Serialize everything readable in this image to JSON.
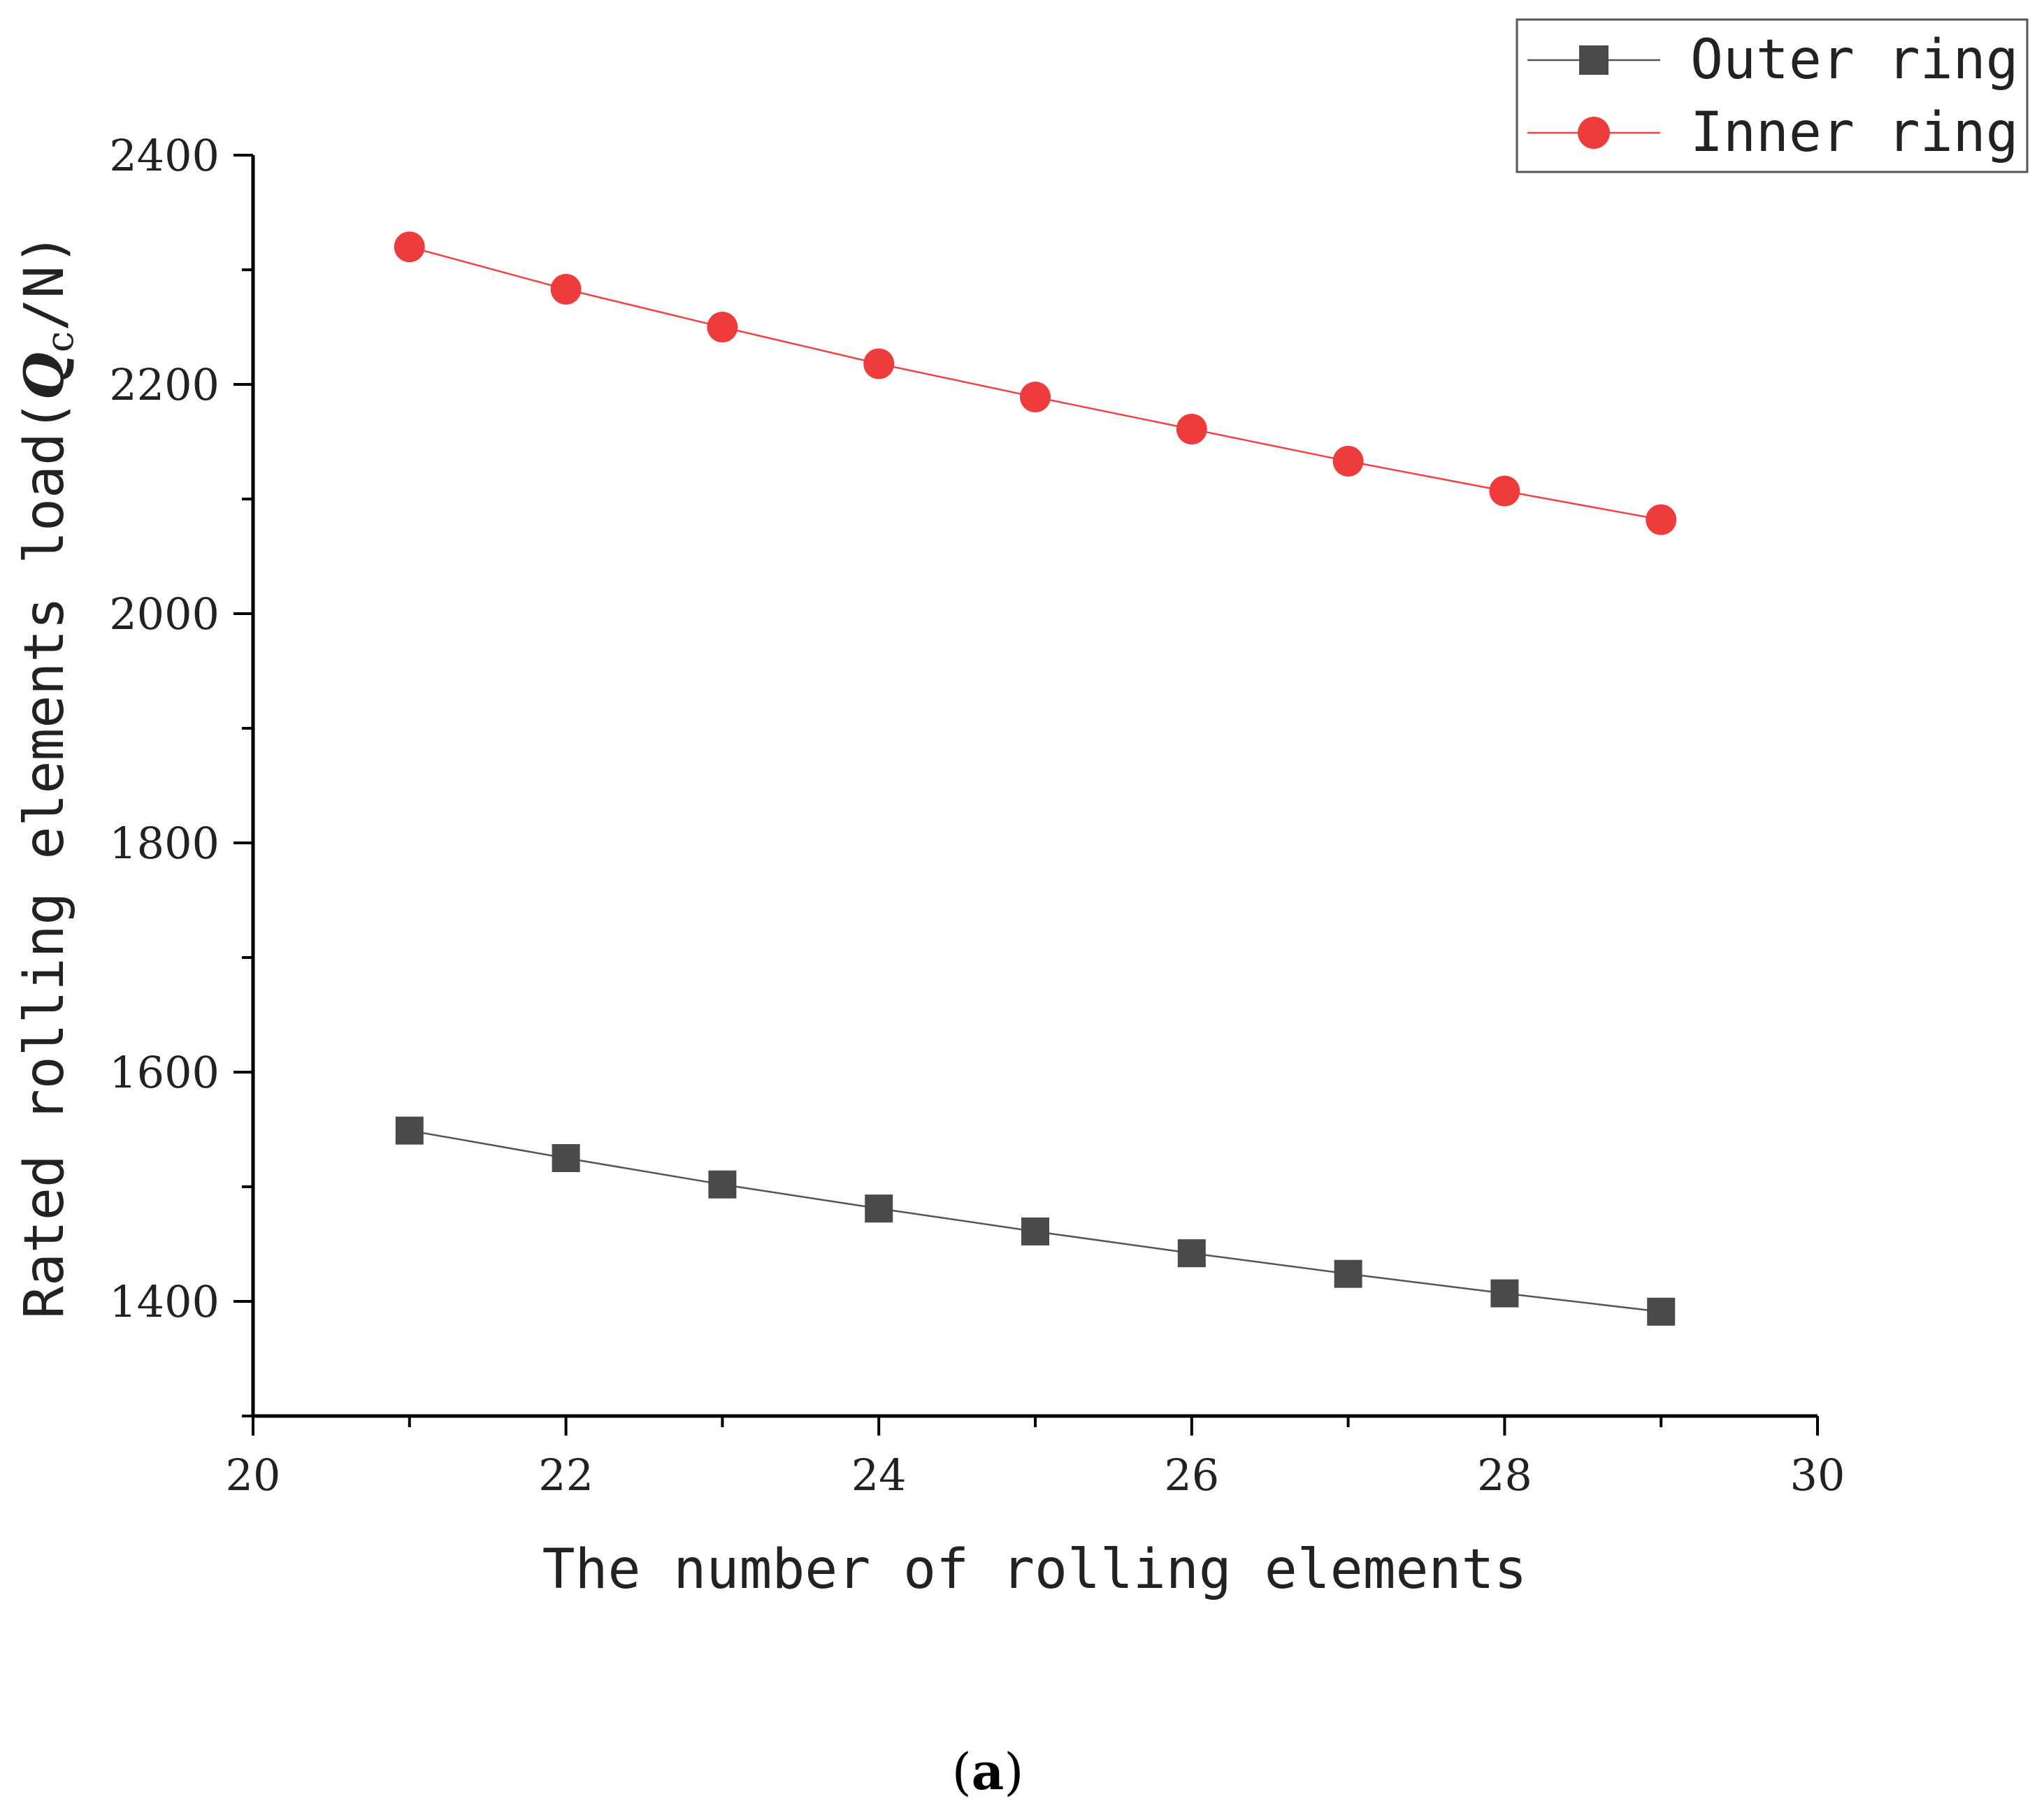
{
  "chart_data": {
    "type": "line",
    "title": "",
    "xlabel": "The number of rolling elements",
    "ylabel_prefix": "Rated rolling elements load(",
    "ylabel_symbol": "Q",
    "ylabel_subscript": "c",
    "ylabel_suffix": "/N)",
    "xlim": [
      20,
      30
    ],
    "ylim": [
      1300,
      2400
    ],
    "x_ticks": [
      20,
      22,
      24,
      26,
      28,
      30
    ],
    "y_ticks": [
      1400,
      1600,
      1800,
      2000,
      2200,
      2400
    ],
    "legend_position": "top-right",
    "x": [
      21,
      22,
      23,
      24,
      25,
      26,
      27,
      28,
      29
    ],
    "series": [
      {
        "name": "Outer ring",
        "marker": "square",
        "color": "#4a4a4a",
        "line_color": "#555555",
        "values": [
          1549,
          1525,
          1502,
          1481,
          1461,
          1442,
          1424,
          1407,
          1391
        ]
      },
      {
        "name": "Inner ring",
        "marker": "circle",
        "color": "#ee3b3b",
        "line_color": "#ee4444",
        "values": [
          2320,
          2283,
          2250,
          2218,
          2189,
          2161,
          2133,
          2107,
          2082
        ]
      }
    ]
  },
  "caption": {
    "open": "(",
    "letter": "a",
    "close": ")"
  }
}
